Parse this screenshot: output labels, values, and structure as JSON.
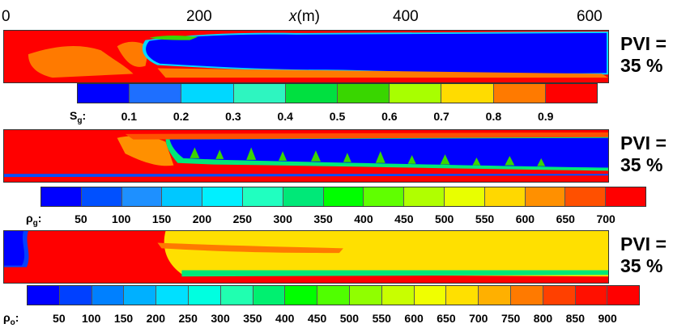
{
  "x_axis": {
    "label_var": "x",
    "label_unit": "(m)",
    "ticks": [
      "0",
      "200",
      "400",
      "600"
    ]
  },
  "panels": [
    {
      "pvi_line1": "PVI =",
      "pvi_line2": "35 %",
      "colorbar": {
        "symbol": "S",
        "subscript": "g",
        "colon": ":",
        "ticks": [
          "0.1",
          "0.2",
          "0.3",
          "0.4",
          "0.5",
          "0.6",
          "0.7",
          "0.8",
          "0.9"
        ],
        "colors": [
          "#0000ff",
          "#1e6fff",
          "#00d8ff",
          "#2ef5c0",
          "#00e040",
          "#39d600",
          "#a8ff00",
          "#ffdc00",
          "#ff7a00",
          "#ff0000"
        ]
      }
    },
    {
      "pvi_line1": "PVI =",
      "pvi_line2": "35 %",
      "colorbar": {
        "symbol": "ρ",
        "subscript": "g",
        "colon": ":",
        "ticks": [
          "50",
          "100",
          "150",
          "200",
          "250",
          "300",
          "350",
          "400",
          "450",
          "500",
          "550",
          "600",
          "650",
          "700"
        ],
        "colors": [
          "#0000ff",
          "#0050ff",
          "#1e90ff",
          "#00c8ff",
          "#00f0ff",
          "#20ffc0",
          "#00e878",
          "#00ff00",
          "#60ff00",
          "#b0ff00",
          "#e8ff00",
          "#ffd800",
          "#ff9000",
          "#ff5000",
          "#ff0000"
        ]
      }
    },
    {
      "pvi_line1": "PVI =",
      "pvi_line2": "35 %",
      "colorbar": {
        "symbol": "ρ",
        "subscript": "o",
        "colon": ":",
        "ticks": [
          "50",
          "100",
          "150",
          "200",
          "250",
          "300",
          "350",
          "400",
          "450",
          "500",
          "550",
          "600",
          "650",
          "700",
          "750",
          "800",
          "850",
          "900"
        ],
        "colors": [
          "#0000ff",
          "#0040ff",
          "#0080ff",
          "#00b0ff",
          "#00e0ff",
          "#00ffe0",
          "#20ffb0",
          "#00f070",
          "#00ff00",
          "#50ff00",
          "#90ff00",
          "#c8ff00",
          "#f0ff00",
          "#ffe000",
          "#ffb000",
          "#ff7a00",
          "#ff4000",
          "#ff1000",
          "#ff0000"
        ]
      }
    }
  ]
}
